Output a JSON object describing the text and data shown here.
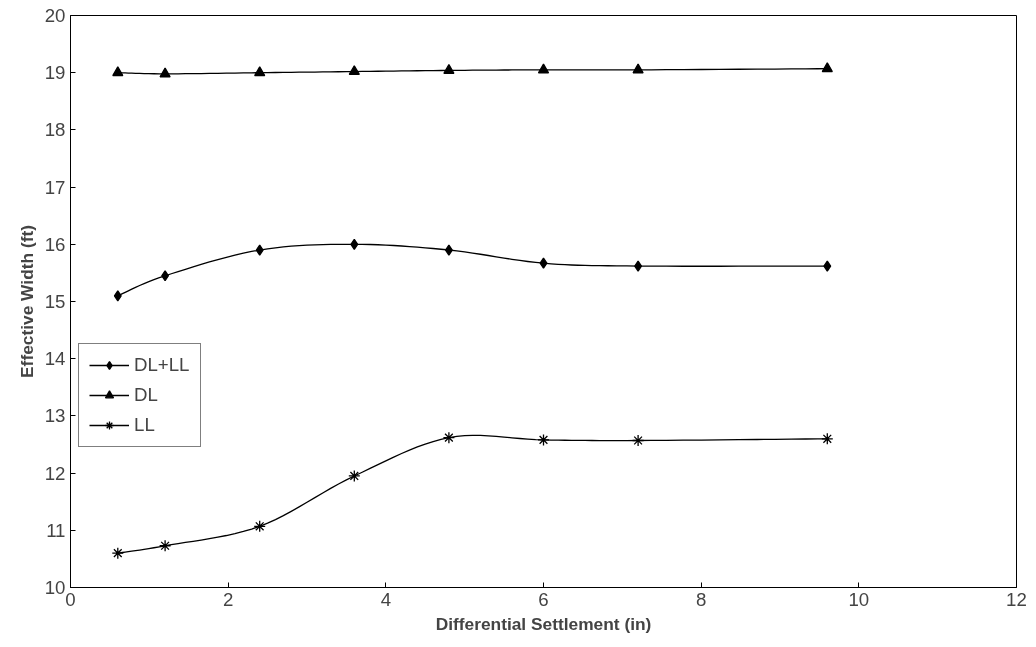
{
  "chart_data": {
    "type": "line",
    "xlabel": "Differential Settlement (in)",
    "ylabel": "Effective Width (ft)",
    "x": [
      0.6,
      1.2,
      2.4,
      3.6,
      4.8,
      6,
      7.2,
      9.6
    ],
    "series": [
      {
        "name": "DL+LL",
        "color": "#000000",
        "marker": "diamond",
        "values": [
          15.1,
          15.45,
          15.9,
          16.0,
          15.9,
          15.67,
          15.62,
          15.62
        ]
      },
      {
        "name": "DL",
        "color": "#000000",
        "marker": "triangle",
        "values": [
          19.0,
          18.98,
          19.0,
          19.02,
          19.04,
          19.05,
          19.05,
          19.07
        ]
      },
      {
        "name": "LL",
        "color": "#000000",
        "marker": "cross",
        "values": [
          10.6,
          10.73,
          11.07,
          11.95,
          12.62,
          12.58,
          12.57,
          12.6
        ]
      }
    ],
    "xlim": [
      0,
      12
    ],
    "xticks": [
      0,
      2,
      4,
      6,
      8,
      10,
      12
    ],
    "ylim": [
      10,
      20
    ],
    "yticks": [
      10,
      11,
      12,
      13,
      14,
      15,
      16,
      17,
      18,
      19,
      20
    ],
    "grid": false,
    "legend": "left",
    "line_style": "solid"
  }
}
